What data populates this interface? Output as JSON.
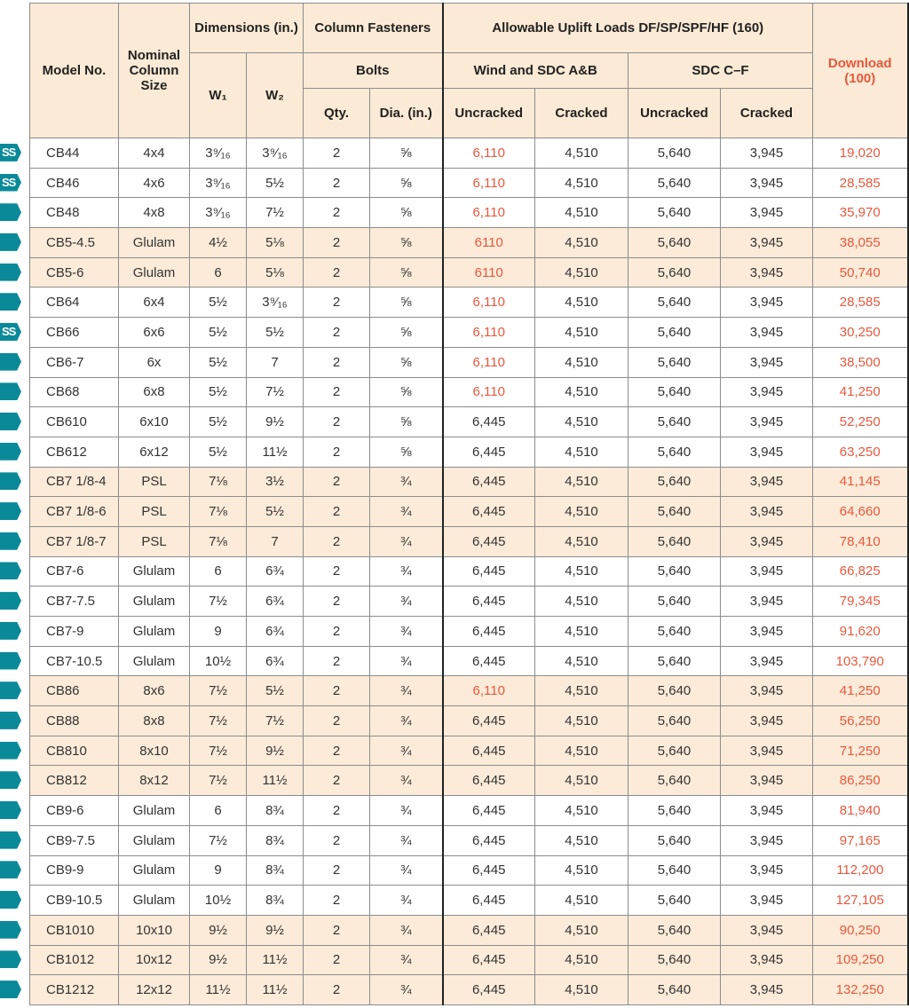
{
  "colors": {
    "header_bg": "#fbead5",
    "highlight_bg": "#fcebd8",
    "red_text": "#e8583d",
    "icon_teal": "#0a8a99"
  },
  "header": {
    "model": "Model No.",
    "nominal": "Nominal Column Size",
    "dimensions": "Dimensions (in.)",
    "w1": "W₁",
    "w2": "W₂",
    "fasteners": "Column Fasteners",
    "bolts": "Bolts",
    "qty": "Qty.",
    "dia": "Dia. (in.)",
    "allowable": "Allowable Uplift Loads DF/SP/SPF/HF (160)",
    "wind": "Wind and SDC A&B",
    "sdc": "SDC C–F",
    "uncracked1": "Uncracked",
    "cracked1": "Cracked",
    "uncracked2": "Uncracked",
    "cracked2": "Cracked",
    "download": "Download (100)"
  },
  "rows": [
    {
      "icon": "ss",
      "hl": false,
      "red": true,
      "cells": [
        "CB44",
        "4x4",
        "3⁹⁄₁₆",
        "3⁹⁄₁₆",
        "2",
        "⅝",
        "6,110",
        "4,510",
        "5,640",
        "3,945",
        "19,020"
      ]
    },
    {
      "icon": "ss",
      "hl": false,
      "red": true,
      "cells": [
        "CB46",
        "4x6",
        "3⁹⁄₁₆",
        "5½",
        "2",
        "⅝",
        "6,110",
        "4,510",
        "5,640",
        "3,945",
        "28,585"
      ]
    },
    {
      "icon": "arrow",
      "hl": false,
      "red": true,
      "cells": [
        "CB48",
        "4x8",
        "3⁹⁄₁₆",
        "7½",
        "2",
        "⅝",
        "6,110",
        "4,510",
        "5,640",
        "3,945",
        "35,970"
      ]
    },
    {
      "icon": "arrow",
      "hl": true,
      "red": true,
      "cells": [
        "CB5-4.5",
        "Glulam",
        "4½",
        "5⅛",
        "2",
        "⅝",
        "6110",
        "4,510",
        "5,640",
        "3,945",
        "38,055"
      ]
    },
    {
      "icon": "arrow",
      "hl": true,
      "red": true,
      "cells": [
        "CB5-6",
        "Glulam",
        "6",
        "5⅛",
        "2",
        "⅝",
        "6110",
        "4,510",
        "5,640",
        "3,945",
        "50,740"
      ]
    },
    {
      "icon": "arrow",
      "hl": false,
      "red": true,
      "cells": [
        "CB64",
        "6x4",
        "5½",
        "3⁹⁄₁₆",
        "2",
        "⅝",
        "6,110",
        "4,510",
        "5,640",
        "3,945",
        "28,585"
      ]
    },
    {
      "icon": "ss",
      "hl": false,
      "red": true,
      "cells": [
        "CB66",
        "6x6",
        "5½",
        "5½",
        "2",
        "⅝",
        "6,110",
        "4,510",
        "5,640",
        "3,945",
        "30,250"
      ]
    },
    {
      "icon": "arrow",
      "hl": false,
      "red": true,
      "cells": [
        "CB6-7",
        "6x",
        "5½",
        "7",
        "2",
        "⅝",
        "6,110",
        "4,510",
        "5,640",
        "3,945",
        "38,500"
      ]
    },
    {
      "icon": "arrow",
      "hl": false,
      "red": true,
      "cells": [
        "CB68",
        "6x8",
        "5½",
        "7½",
        "2",
        "⅝",
        "6,110",
        "4,510",
        "5,640",
        "3,945",
        "41,250"
      ]
    },
    {
      "icon": "arrow",
      "hl": false,
      "red": false,
      "cells": [
        "CB610",
        "6x10",
        "5½",
        "9½",
        "2",
        "⅝",
        "6,445",
        "4,510",
        "5,640",
        "3,945",
        "52,250"
      ]
    },
    {
      "icon": "arrow",
      "hl": false,
      "red": false,
      "cells": [
        "CB612",
        "6x12",
        "5½",
        "11½",
        "2",
        "⅝",
        "6,445",
        "4,510",
        "5,640",
        "3,945",
        "63,250"
      ]
    },
    {
      "icon": "arrow",
      "hl": true,
      "red": false,
      "cells": [
        "CB7 1/8-4",
        "PSL",
        "7⅛",
        "3½",
        "2",
        "¾",
        "6,445",
        "4,510",
        "5,640",
        "3,945",
        "41,145"
      ]
    },
    {
      "icon": "arrow",
      "hl": true,
      "red": false,
      "cells": [
        "CB7 1/8-6",
        "PSL",
        "7⅛",
        "5½",
        "2",
        "¾",
        "6,445",
        "4,510",
        "5,640",
        "3,945",
        "64,660"
      ]
    },
    {
      "icon": "arrow",
      "hl": true,
      "red": false,
      "cells": [
        "CB7 1/8-7",
        "PSL",
        "7⅛",
        "7",
        "2",
        "¾",
        "6,445",
        "4,510",
        "5,640",
        "3,945",
        "78,410"
      ]
    },
    {
      "icon": "arrow",
      "hl": false,
      "red": false,
      "cells": [
        "CB7-6",
        "Glulam",
        "6",
        "6¾",
        "2",
        "¾",
        "6,445",
        "4,510",
        "5,640",
        "3,945",
        "66,825"
      ]
    },
    {
      "icon": "arrow",
      "hl": false,
      "red": false,
      "cells": [
        "CB7-7.5",
        "Glulam",
        "7½",
        "6¾",
        "2",
        "¾",
        "6,445",
        "4,510",
        "5,640",
        "3,945",
        "79,345"
      ]
    },
    {
      "icon": "arrow",
      "hl": false,
      "red": false,
      "cells": [
        "CB7-9",
        "Glulam",
        "9",
        "6¾",
        "2",
        "¾",
        "6,445",
        "4,510",
        "5,640",
        "3,945",
        "91,620"
      ]
    },
    {
      "icon": "arrow",
      "hl": false,
      "red": false,
      "cells": [
        "CB7-10.5",
        "Glulam",
        "10½",
        "6¾",
        "2",
        "¾",
        "6,445",
        "4,510",
        "5,640",
        "3,945",
        "103,790"
      ]
    },
    {
      "icon": "arrow",
      "hl": true,
      "red": true,
      "cells": [
        "CB86",
        "8x6",
        "7½",
        "5½",
        "2",
        "¾",
        "6,110",
        "4,510",
        "5,640",
        "3,945",
        "41,250"
      ]
    },
    {
      "icon": "arrow",
      "hl": true,
      "red": false,
      "cells": [
        "CB88",
        "8x8",
        "7½",
        "7½",
        "2",
        "¾",
        "6,445",
        "4,510",
        "5,640",
        "3,945",
        "56,250"
      ]
    },
    {
      "icon": "arrow",
      "hl": true,
      "red": false,
      "cells": [
        "CB810",
        "8x10",
        "7½",
        "9½",
        "2",
        "¾",
        "6,445",
        "4,510",
        "5,640",
        "3,945",
        "71,250"
      ]
    },
    {
      "icon": "arrow",
      "hl": true,
      "red": false,
      "cells": [
        "CB812",
        "8x12",
        "7½",
        "11½",
        "2",
        "¾",
        "6,445",
        "4,510",
        "5,640",
        "3,945",
        "86,250"
      ]
    },
    {
      "icon": "arrow",
      "hl": false,
      "red": false,
      "cells": [
        "CB9-6",
        "Glulam",
        "6",
        "8¾",
        "2",
        "¾",
        "6,445",
        "4,510",
        "5,640",
        "3,945",
        "81,940"
      ]
    },
    {
      "icon": "arrow",
      "hl": false,
      "red": false,
      "cells": [
        "CB9-7.5",
        "Glulam",
        "7½",
        "8¾",
        "2",
        "¾",
        "6,445",
        "4,510",
        "5,640",
        "3,945",
        "97,165"
      ]
    },
    {
      "icon": "arrow",
      "hl": false,
      "red": false,
      "cells": [
        "CB9-9",
        "Glulam",
        "9",
        "8¾",
        "2",
        "¾",
        "6,445",
        "4,510",
        "5,640",
        "3,945",
        "112,200"
      ]
    },
    {
      "icon": "arrow",
      "hl": false,
      "red": false,
      "cells": [
        "CB9-10.5",
        "Glulam",
        "10½",
        "8¾",
        "2",
        "¾",
        "6,445",
        "4,510",
        "5,640",
        "3,945",
        "127,105"
      ]
    },
    {
      "icon": "arrow",
      "hl": true,
      "red": false,
      "cells": [
        "CB1010",
        "10x10",
        "9½",
        "9½",
        "2",
        "¾",
        "6,445",
        "4,510",
        "5,640",
        "3,945",
        "90,250"
      ]
    },
    {
      "icon": "arrow",
      "hl": true,
      "red": false,
      "cells": [
        "CB1012",
        "10x12",
        "9½",
        "11½",
        "2",
        "¾",
        "6,445",
        "4,510",
        "5,640",
        "3,945",
        "109,250"
      ]
    },
    {
      "icon": "arrow",
      "hl": true,
      "red": false,
      "cells": [
        "CB1212",
        "12x12",
        "11½",
        "11½",
        "2",
        "¾",
        "6,445",
        "4,510",
        "5,640",
        "3,945",
        "132,250"
      ]
    }
  ],
  "ss_label": "SS"
}
